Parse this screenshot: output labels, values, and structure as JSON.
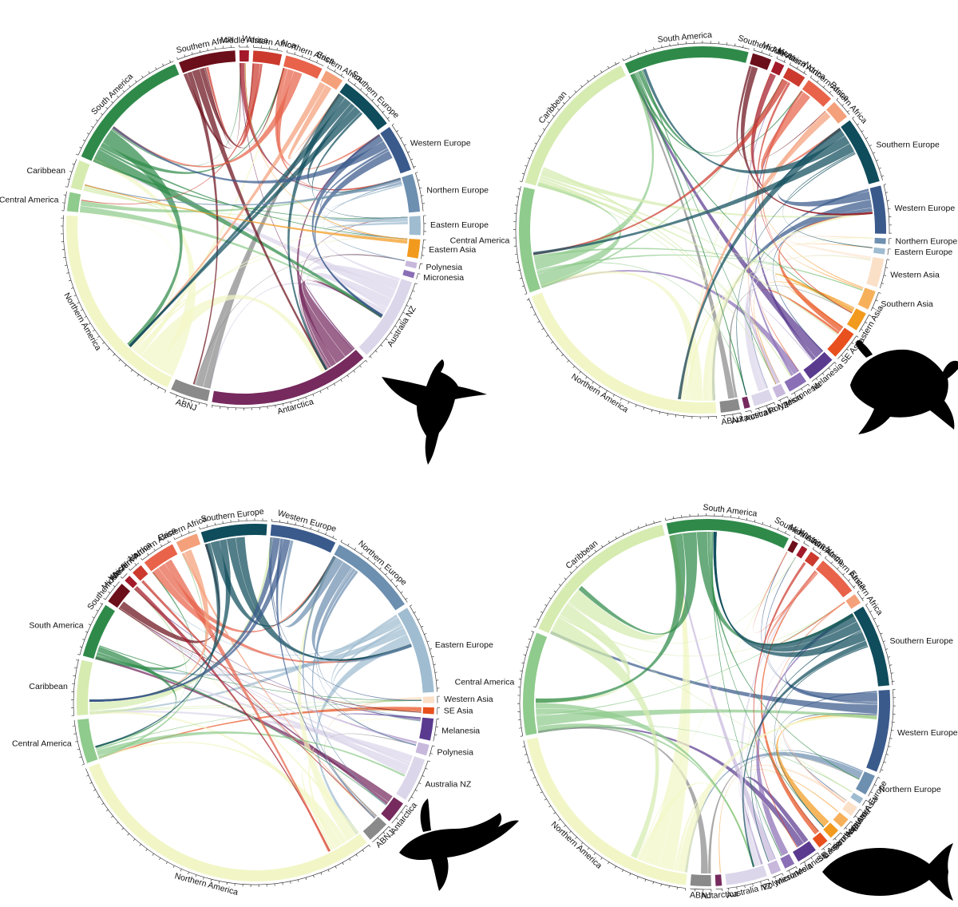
{
  "figure": {
    "panels": [
      {
        "id": "seabirds",
        "icon": "albatross-icon",
        "sectors": [
          {
            "label": "Australia NZ",
            "color": "#dcd6ea",
            "value": 9
          },
          {
            "label": "Antarctica",
            "color": "#762a5e",
            "value": 17
          },
          {
            "label": "ABNJ",
            "color": "#8a8a8a",
            "value": 4
          },
          {
            "label": "Northern America",
            "color": "#f2f6c6",
            "value": 22
          },
          {
            "label": "Central America",
            "color": "#8fcb8c",
            "value": 2
          },
          {
            "label": "Caribbean",
            "color": "#d6ebb0",
            "value": 3
          },
          {
            "label": "South America",
            "color": "#2f8a4a",
            "value": 14
          },
          {
            "label": "Southern Africa",
            "color": "#6b0f1a",
            "value": 6
          },
          {
            "label": "Middle Africa",
            "color": "#a31a2a",
            "value": 1
          },
          {
            "label": "Western Africa",
            "color": "#cc3a2e",
            "value": 3
          },
          {
            "label": "Northern Africa",
            "color": "#e8634a",
            "value": 4
          },
          {
            "label": "Eastern Africa",
            "color": "#f4a07a",
            "value": 2
          },
          {
            "label": "Southern Europe",
            "color": "#0f4c5c",
            "value": 6
          },
          {
            "label": "Western Europe",
            "color": "#3a5a8c",
            "value": 5
          },
          {
            "label": "Northern Europe",
            "color": "#6d8fb0",
            "value": 4
          },
          {
            "label": "Eastern Europe",
            "color": "#9fbcd0",
            "value": 2
          },
          {
            "label": "Eastern Asia",
            "color": "#f29a1e",
            "value": 2
          },
          {
            "label": "Polynesia",
            "color": "#c7b8dc",
            "value": 0.6
          },
          {
            "label": "Micronesia",
            "color": "#8a6fb6",
            "value": 0.6
          }
        ]
      },
      {
        "id": "turtles",
        "icon": "sea-turtle-icon",
        "sectors": [
          {
            "label": "Western Europe",
            "color": "#3a5a8c",
            "value": 5
          },
          {
            "label": "Northern Europe",
            "color": "#6d8fb0",
            "value": 0.6
          },
          {
            "label": "Eastern Europe",
            "color": "#9fbcd0",
            "value": 0.6
          },
          {
            "label": "Western Asia",
            "color": "#fbe0c8",
            "value": 3
          },
          {
            "label": "Southern Asia",
            "color": "#f7b05a",
            "value": 2
          },
          {
            "label": "Eastern Asia",
            "color": "#f29a1e",
            "value": 2
          },
          {
            "label": "SE Asia",
            "color": "#e8501e",
            "value": 3
          },
          {
            "label": "Melanesia",
            "color": "#5a3a8f",
            "value": 3
          },
          {
            "label": "Micronesia",
            "color": "#8a6fb6",
            "value": 2
          },
          {
            "label": "Polynesia",
            "color": "#c7b8dc",
            "value": 1
          },
          {
            "label": "Australia NZ",
            "color": "#dcd6ea",
            "value": 2
          },
          {
            "label": "Antarctica",
            "color": "#762a5e",
            "value": 0.6
          },
          {
            "label": "ABNJ",
            "color": "#8a8a8a",
            "value": 2
          },
          {
            "label": "Northern America",
            "color": "#f2f6c6",
            "value": 24
          },
          {
            "label": "Central America",
            "color": "#8fcb8c",
            "value": 11
          },
          {
            "label": "Caribbean",
            "color": "#d6ebb0",
            "value": 16
          },
          {
            "label": "South America",
            "color": "#2f8a4a",
            "value": 13
          },
          {
            "label": "Southern Africa",
            "color": "#6b0f1a",
            "value": 2
          },
          {
            "label": "Middle Africa",
            "color": "#a31a2a",
            "value": 1
          },
          {
            "label": "Western Africa",
            "color": "#cc3a2e",
            "value": 2
          },
          {
            "label": "Northern Africa",
            "color": "#e8634a",
            "value": 3
          },
          {
            "label": "Eastern Africa",
            "color": "#f4a07a",
            "value": 2
          },
          {
            "label": "Southern Europe",
            "color": "#0f4c5c",
            "value": 7
          }
        ]
      },
      {
        "id": "whales",
        "icon": "humpback-whale-icon",
        "sectors": [
          {
            "label": "Eastern Europe",
            "color": "#9fbcd0",
            "value": 8
          },
          {
            "label": "Western Asia",
            "color": "#fbe0c8",
            "value": 0.6
          },
          {
            "label": "SE Asia",
            "color": "#e8501e",
            "value": 0.6
          },
          {
            "label": "Melanesia",
            "color": "#5a3a8f",
            "value": 2
          },
          {
            "label": "Polynesia",
            "color": "#c7b8dc",
            "value": 1
          },
          {
            "label": "Australia NZ",
            "color": "#dcd6ea",
            "value": 4
          },
          {
            "label": "Antarctica",
            "color": "#762a5e",
            "value": 2
          },
          {
            "label": "ABNJ",
            "color": "#8a8a8a",
            "value": 2
          },
          {
            "label": "Northern America",
            "color": "#f2f6c6",
            "value": 30
          },
          {
            "label": "Central America",
            "color": "#8fcb8c",
            "value": 4
          },
          {
            "label": "Caribbean",
            "color": "#d6ebb0",
            "value": 5
          },
          {
            "label": "South America",
            "color": "#2f8a4a",
            "value": 5
          },
          {
            "label": "Southern Africa",
            "color": "#6b0f1a",
            "value": 2
          },
          {
            "label": "Middle Africa",
            "color": "#a31a2a",
            "value": 0.6
          },
          {
            "label": "Western Africa",
            "color": "#cc3a2e",
            "value": 1
          },
          {
            "label": "Northern Africa",
            "color": "#e8634a",
            "value": 3
          },
          {
            "label": "Eastern Africa",
            "color": "#f4a07a",
            "value": 2
          },
          {
            "label": "Southern Europe",
            "color": "#0f4c5c",
            "value": 6
          },
          {
            "label": "Western Europe",
            "color": "#3a5a8c",
            "value": 6
          },
          {
            "label": "Northern Europe",
            "color": "#6d8fb0",
            "value": 8
          }
        ]
      },
      {
        "id": "tunas",
        "icon": "tuna-icon",
        "sectors": [
          {
            "label": "Western Europe",
            "color": "#3a5a8c",
            "value": 8
          },
          {
            "label": "Northern Europe",
            "color": "#6d8fb0",
            "value": 2
          },
          {
            "label": "Eastern Europe",
            "color": "#9fbcd0",
            "value": 0.6
          },
          {
            "label": "Western Asia",
            "color": "#fbe0c8",
            "value": 1
          },
          {
            "label": "Southern Asia",
            "color": "#f7b05a",
            "value": 1
          },
          {
            "label": "Eastern Asia",
            "color": "#f29a1e",
            "value": 1
          },
          {
            "label": "SE Asia",
            "color": "#e8501e",
            "value": 1
          },
          {
            "label": "Melanesia",
            "color": "#5a3a8f",
            "value": 2
          },
          {
            "label": "Micronesia",
            "color": "#8a6fb6",
            "value": 1
          },
          {
            "label": "Polynesia",
            "color": "#c7b8dc",
            "value": 1
          },
          {
            "label": "Australia NZ",
            "color": "#dcd6ea",
            "value": 4
          },
          {
            "label": "Antarctica",
            "color": "#762a5e",
            "value": 0.6
          },
          {
            "label": "ABNJ",
            "color": "#8a8a8a",
            "value": 2
          },
          {
            "label": "Northern America",
            "color": "#f2f6c6",
            "value": 22
          },
          {
            "label": "Central America",
            "color": "#8fcb8c",
            "value": 10
          },
          {
            "label": "Caribbean",
            "color": "#d6ebb0",
            "value": 16
          },
          {
            "label": "South America",
            "color": "#2f8a4a",
            "value": 12
          },
          {
            "label": "Southern Africa",
            "color": "#6b0f1a",
            "value": 0.6
          },
          {
            "label": "Middle Africa",
            "color": "#a31a2a",
            "value": 0.6
          },
          {
            "label": "Western Africa",
            "color": "#cc3a2e",
            "value": 1
          },
          {
            "label": "Northern Africa",
            "color": "#e8634a",
            "value": 4
          },
          {
            "label": "Eastern Africa",
            "color": "#f4a07a",
            "value": 1
          },
          {
            "label": "Southern Europe",
            "color": "#0f4c5c",
            "value": 8
          }
        ]
      }
    ]
  }
}
